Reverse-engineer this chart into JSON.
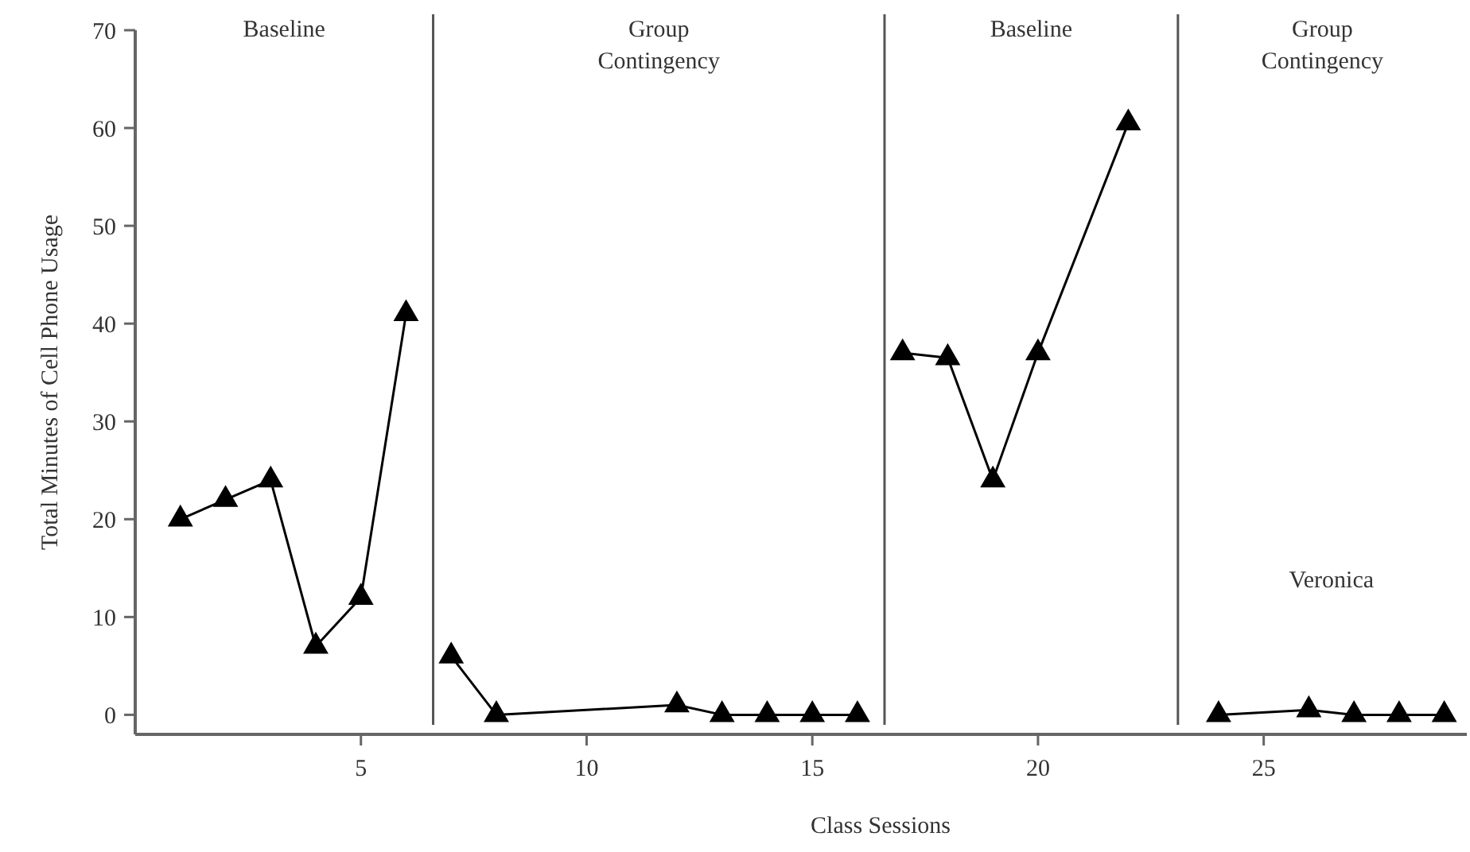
{
  "chart_data": {
    "type": "line",
    "title": "Veronica",
    "xlabel": "Class Sessions",
    "ylabel": "Total Minutes of Cell Phone Usage",
    "xlim": [
      0,
      29.5
    ],
    "xticks": [
      5,
      10,
      15,
      20,
      25
    ],
    "ylim": [
      -2,
      70
    ],
    "yticks": [
      0,
      10,
      20,
      30,
      40,
      50,
      60,
      70
    ],
    "marker": "triangle",
    "line_style": "solid",
    "grid": false,
    "series": [
      {
        "color": "#000000",
        "x": [
          1,
          2,
          3,
          4,
          5,
          6
        ],
        "values": [
          20,
          22,
          24,
          7,
          12,
          41
        ]
      },
      {
        "color": "#000000",
        "x": [
          7,
          8,
          12,
          13,
          14,
          15,
          16
        ],
        "values": [
          6,
          0,
          1,
          0,
          0,
          0,
          0
        ]
      },
      {
        "color": "#000000",
        "x": [
          17,
          18,
          19,
          20,
          22
        ],
        "values": [
          37,
          36.5,
          24,
          37,
          60.5
        ]
      },
      {
        "color": "#000000",
        "x": [
          24,
          26,
          27,
          28,
          29
        ],
        "values": [
          0,
          0.5,
          0,
          0,
          0
        ]
      }
    ],
    "ref_lines": [
      {
        "axis": "x",
        "value": 6.6,
        "color": "#555555"
      },
      {
        "axis": "x",
        "value": 16.6,
        "color": "#555555"
      },
      {
        "axis": "x",
        "value": 23.1,
        "color": "#555555"
      }
    ],
    "annotations": [
      "Baseline",
      "Group Contingency",
      "Baseline",
      "Group Contingency"
    ]
  }
}
